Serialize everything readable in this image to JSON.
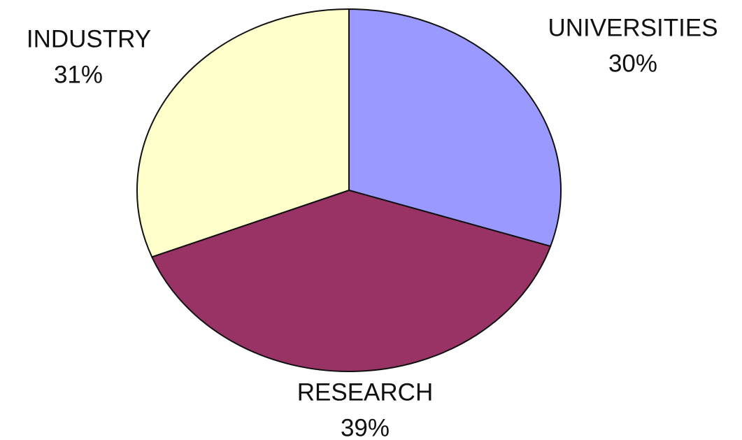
{
  "chart_data": {
    "type": "pie",
    "categories": [
      "UNIVERSITIES",
      "RESEARCH",
      "INDUSTRY"
    ],
    "values": [
      30,
      39,
      31
    ],
    "value_labels": [
      "30%",
      "39%",
      "31%"
    ],
    "colors": [
      "#9999ff",
      "#993366",
      "#ffffcc"
    ]
  }
}
